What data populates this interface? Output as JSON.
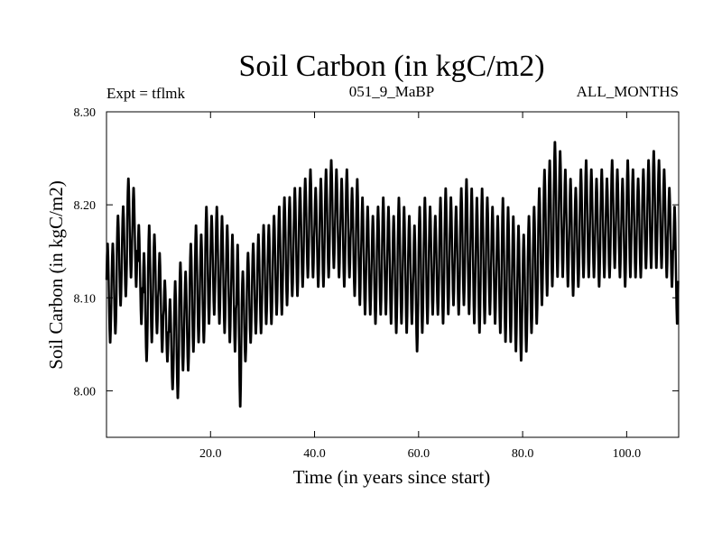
{
  "chart_data": {
    "type": "line",
    "title": "Soil Carbon (in kgC/m2)",
    "subtitle_left": "Expt = tflmk",
    "subtitle_center": "051_9_MaBP",
    "subtitle_right": "ALL_MONTHS",
    "xlabel": "Time (in years since start)",
    "ylabel": "Soil Carbon (in kgC/m2)",
    "xlim": [
      0,
      110
    ],
    "ylim": [
      7.95,
      8.3
    ],
    "xticks": [
      20,
      40,
      60,
      80,
      100
    ],
    "xtick_labels": [
      "20.0",
      "40.0",
      "60.0",
      "80.0",
      "100.0"
    ],
    "yticks": [
      8.0,
      8.1,
      8.2,
      8.3
    ],
    "ytick_labels": [
      "8.00",
      "8.10",
      "8.20",
      "8.30"
    ],
    "grid": false,
    "samples_per_year": 12,
    "annual_cycle": {
      "years": [
        0,
        1,
        2,
        3,
        4,
        5,
        6,
        7,
        8,
        9,
        10,
        11,
        12,
        13,
        14,
        15,
        16,
        17,
        18,
        19,
        20,
        21,
        22,
        23,
        24,
        25,
        26,
        27,
        28,
        29,
        30,
        31,
        32,
        33,
        34,
        35,
        36,
        37,
        38,
        39,
        40,
        41,
        42,
        43,
        44,
        45,
        46,
        47,
        48,
        49,
        50,
        51,
        52,
        53,
        54,
        55,
        56,
        57,
        58,
        59,
        60,
        61,
        62,
        63,
        64,
        65,
        66,
        67,
        68,
        69,
        70,
        71,
        72,
        73,
        74,
        75,
        76,
        77,
        78,
        79,
        80,
        81,
        82,
        83,
        84,
        85,
        86,
        87,
        88,
        89,
        90,
        91,
        92,
        93,
        94,
        95,
        96,
        97,
        98,
        99,
        100,
        101,
        102,
        103,
        104,
        105,
        106,
        107,
        108,
        109
      ],
      "annual_max": [
        8.16,
        8.16,
        8.19,
        8.2,
        8.23,
        8.22,
        8.18,
        8.15,
        8.18,
        8.17,
        8.15,
        8.12,
        8.1,
        8.12,
        8.14,
        8.13,
        8.16,
        8.18,
        8.17,
        8.2,
        8.19,
        8.2,
        8.19,
        8.18,
        8.17,
        8.16,
        8.13,
        8.15,
        8.16,
        8.17,
        8.18,
        8.18,
        8.19,
        8.2,
        8.21,
        8.21,
        8.22,
        8.22,
        8.23,
        8.24,
        8.22,
        8.23,
        8.24,
        8.25,
        8.24,
        8.23,
        8.24,
        8.22,
        8.23,
        8.21,
        8.2,
        8.19,
        8.2,
        8.21,
        8.2,
        8.19,
        8.21,
        8.2,
        8.19,
        8.18,
        8.2,
        8.21,
        8.2,
        8.19,
        8.21,
        8.22,
        8.21,
        8.2,
        8.22,
        8.23,
        8.22,
        8.21,
        8.22,
        8.21,
        8.2,
        8.19,
        8.21,
        8.2,
        8.19,
        8.18,
        8.17,
        8.19,
        8.2,
        8.22,
        8.24,
        8.25,
        8.27,
        8.26,
        8.24,
        8.23,
        8.22,
        8.24,
        8.25,
        8.24,
        8.23,
        8.24,
        8.23,
        8.25,
        8.24,
        8.23,
        8.25,
        8.24,
        8.23,
        8.24,
        8.25,
        8.26,
        8.25,
        8.24,
        8.22,
        8.2
      ],
      "annual_min": [
        8.05,
        8.06,
        8.09,
        8.1,
        8.12,
        8.11,
        8.07,
        8.03,
        8.05,
        8.06,
        8.04,
        8.03,
        8.0,
        7.99,
        8.02,
        8.02,
        8.04,
        8.05,
        8.05,
        8.07,
        8.08,
        8.07,
        8.06,
        8.05,
        8.04,
        7.98,
        8.03,
        8.05,
        8.06,
        8.06,
        8.07,
        8.07,
        8.08,
        8.08,
        8.09,
        8.1,
        8.1,
        8.11,
        8.12,
        8.12,
        8.11,
        8.11,
        8.12,
        8.13,
        8.12,
        8.11,
        8.12,
        8.1,
        8.09,
        8.08,
        8.08,
        8.07,
        8.08,
        8.08,
        8.07,
        8.06,
        8.07,
        8.06,
        8.07,
        8.04,
        8.06,
        8.07,
        8.08,
        8.08,
        8.07,
        8.08,
        8.09,
        8.08,
        8.09,
        8.08,
        8.07,
        8.06,
        8.07,
        8.08,
        8.07,
        8.06,
        8.05,
        8.05,
        8.04,
        8.03,
        8.04,
        8.06,
        8.07,
        8.09,
        8.1,
        8.11,
        8.12,
        8.12,
        8.11,
        8.1,
        8.11,
        8.12,
        8.12,
        8.12,
        8.11,
        8.12,
        8.12,
        8.13,
        8.12,
        8.11,
        8.12,
        8.12,
        8.12,
        8.13,
        8.13,
        8.13,
        8.13,
        8.12,
        8.11,
        8.07
      ]
    }
  }
}
